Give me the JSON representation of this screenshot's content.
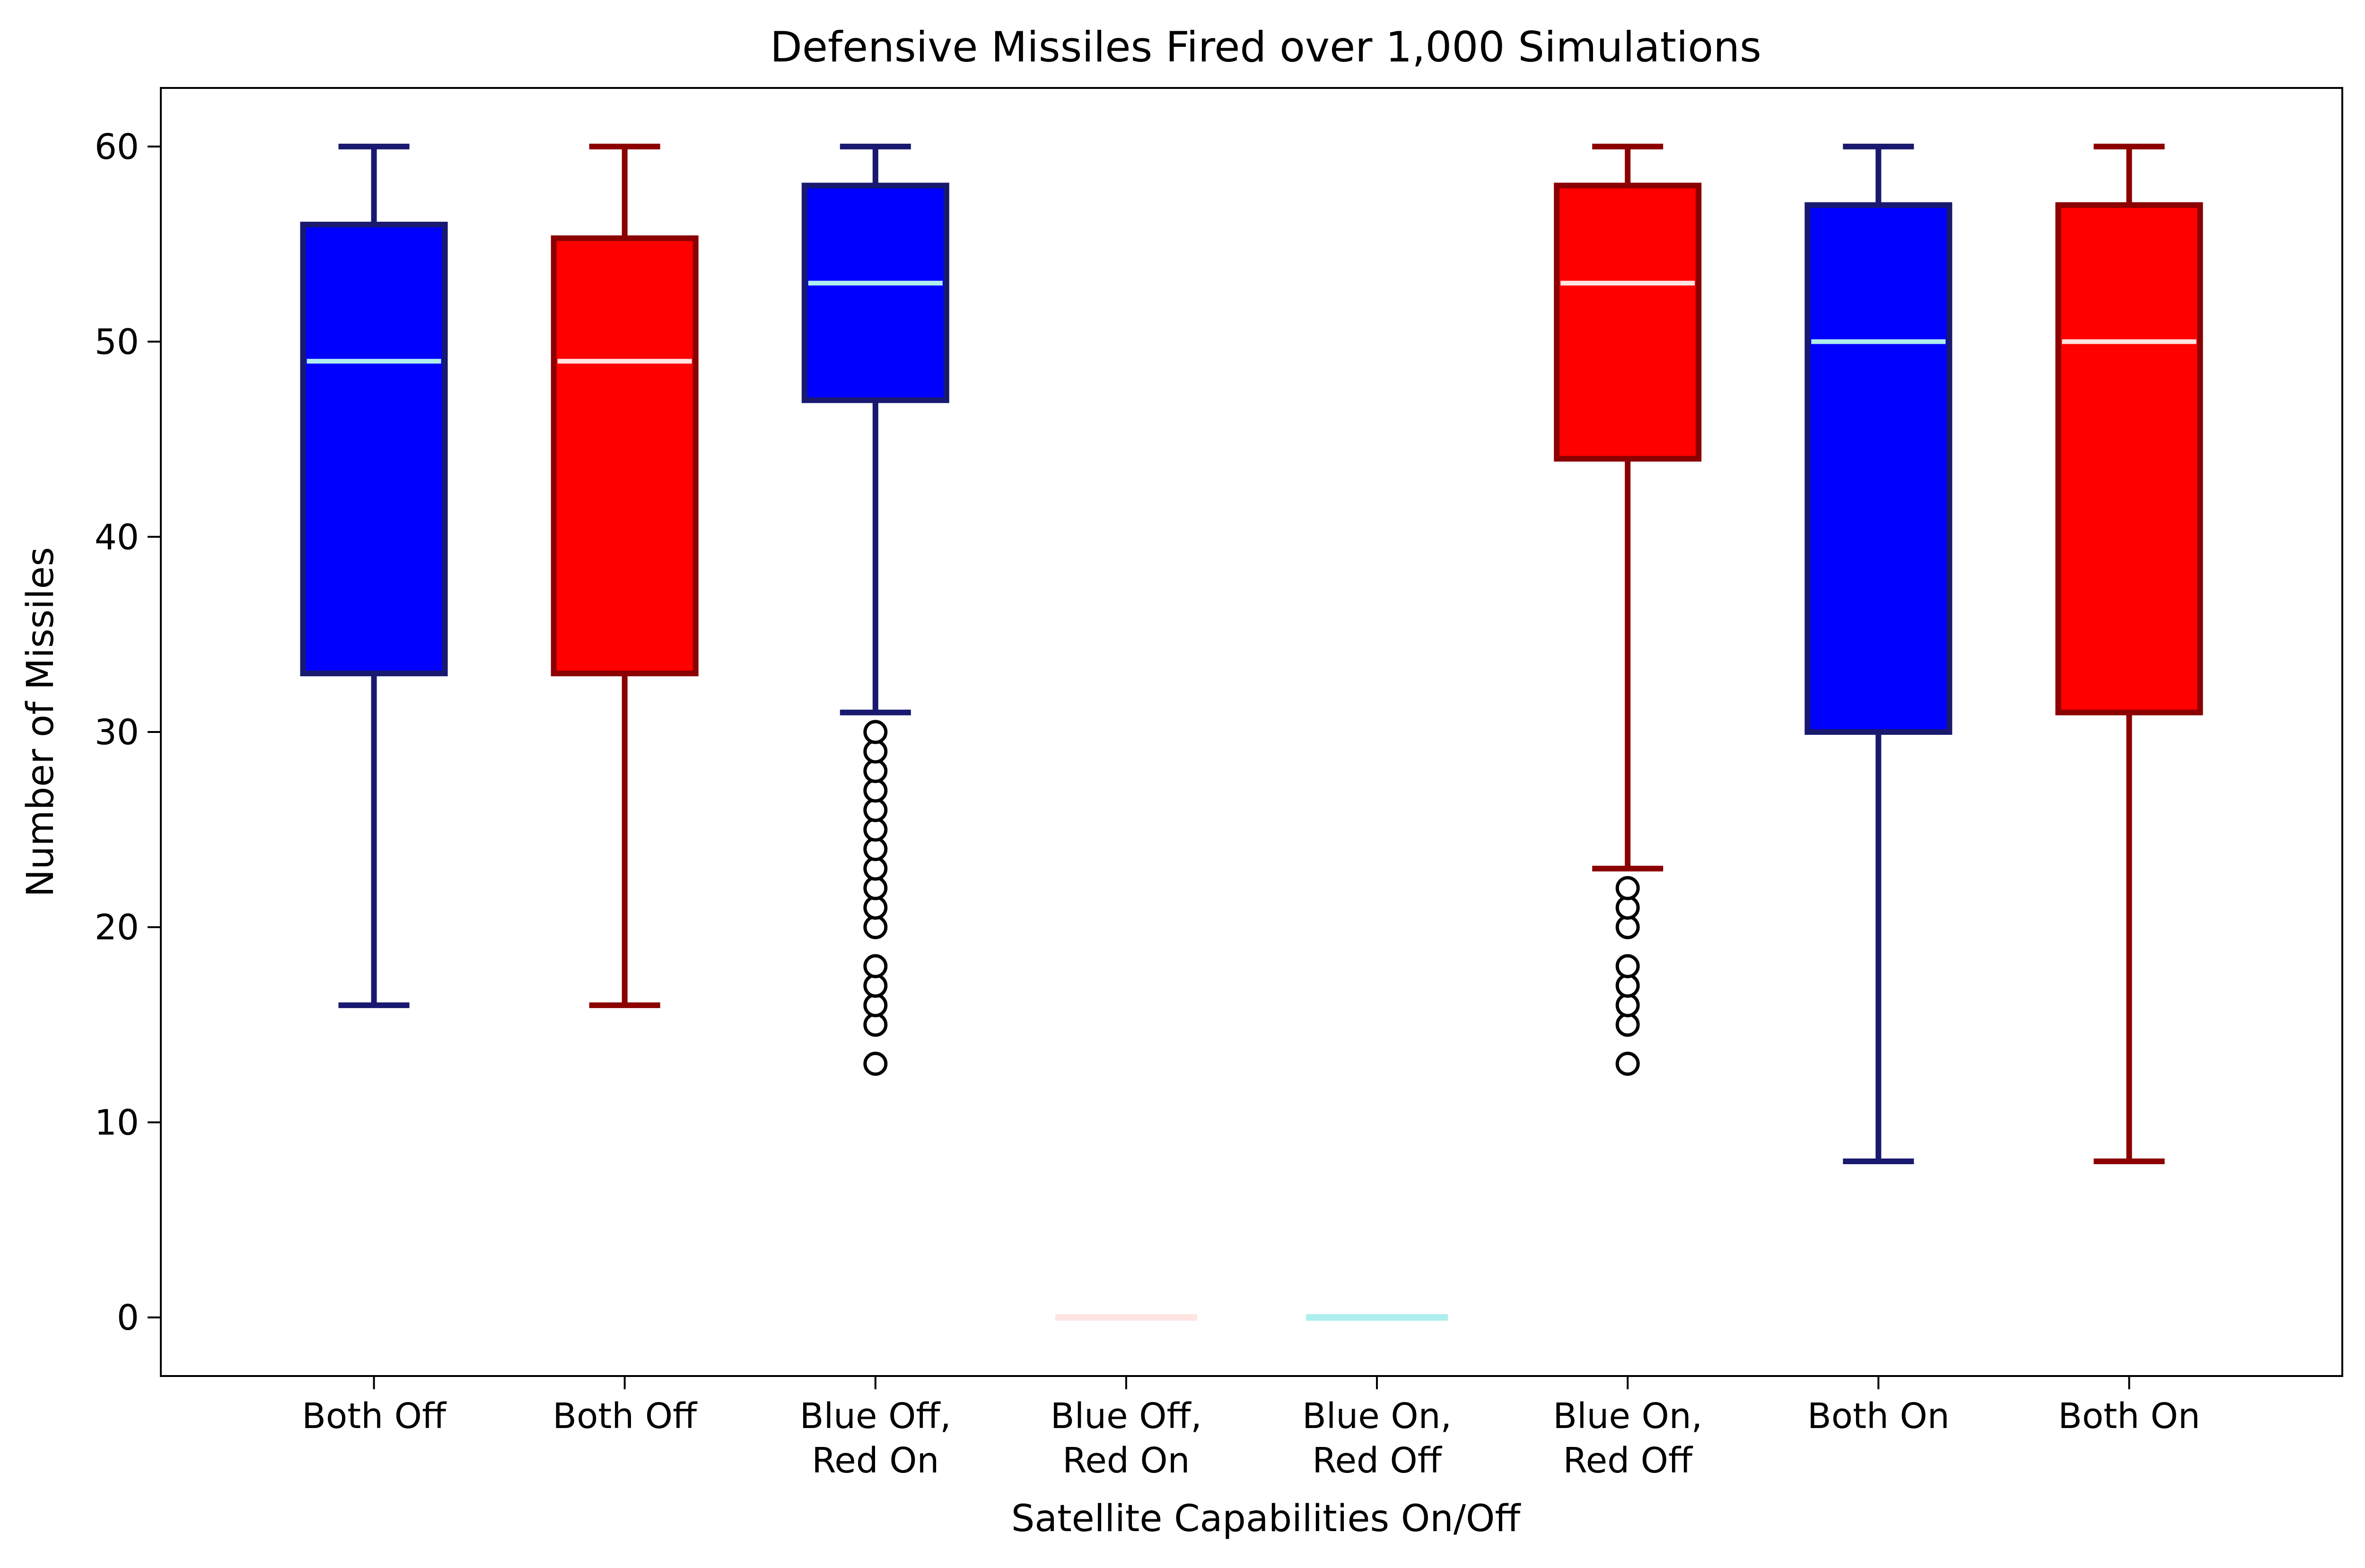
{
  "chart_data": {
    "type": "box",
    "title": "Defensive Missiles Fired over 1,000 Simulations",
    "xlabel": "Satellite Capabilities On/Off",
    "ylabel": "Number of Missiles",
    "ylim": [
      -3,
      63
    ],
    "yticks": [
      0,
      10,
      20,
      30,
      40,
      50,
      60
    ],
    "grid": false,
    "categories": [
      [
        "Both Off"
      ],
      [
        "Both Off"
      ],
      [
        "Blue Off,",
        "Red On"
      ],
      [
        "Blue Off,",
        "Red On"
      ],
      [
        "Blue On,",
        "Red Off"
      ],
      [
        "Blue On,",
        "Red Off"
      ],
      [
        "Both On"
      ],
      [
        "Both On"
      ]
    ],
    "boxes": [
      {
        "team": "blue",
        "whisker_low": 16,
        "q1": 33,
        "median": 49,
        "q3": 56,
        "whisker_high": 60,
        "outliers": []
      },
      {
        "team": "red",
        "whisker_low": 16,
        "q1": 33,
        "median": 49,
        "q3": 55.3,
        "whisker_high": 60,
        "outliers": []
      },
      {
        "team": "blue",
        "whisker_low": 31,
        "q1": 47,
        "median": 53,
        "q3": 58,
        "whisker_high": 60,
        "outliers": [
          13,
          15,
          16,
          17,
          18,
          20,
          21,
          22,
          23,
          24,
          25,
          26,
          27,
          28,
          29,
          30
        ]
      },
      {
        "team": "red",
        "whisker_low": 0,
        "q1": 0,
        "median": 0,
        "q3": 0,
        "whisker_high": 0,
        "outliers": []
      },
      {
        "team": "blue",
        "whisker_low": 0,
        "q1": 0,
        "median": 0,
        "q3": 0,
        "whisker_high": 0,
        "outliers": []
      },
      {
        "team": "red",
        "whisker_low": 23,
        "q1": 44,
        "median": 53,
        "q3": 58,
        "whisker_high": 60,
        "outliers": [
          13,
          15,
          16,
          17,
          18,
          20,
          21,
          22
        ]
      },
      {
        "team": "blue",
        "whisker_low": 8,
        "q1": 30,
        "median": 50,
        "q3": 57,
        "whisker_high": 60,
        "outliers": []
      },
      {
        "team": "red",
        "whisker_low": 8,
        "q1": 31,
        "median": 50,
        "q3": 57,
        "whisker_high": 60,
        "outliers": []
      }
    ],
    "colors": {
      "blue_fill": "#0000ff",
      "blue_edge": "#191970",
      "blue_median": "#afeeee",
      "red_fill": "#ff0000",
      "red_edge": "#8b0000",
      "red_median": "#ffe4e1",
      "outlier_edge": "#000000",
      "outlier_fill": "#ffffff"
    }
  }
}
